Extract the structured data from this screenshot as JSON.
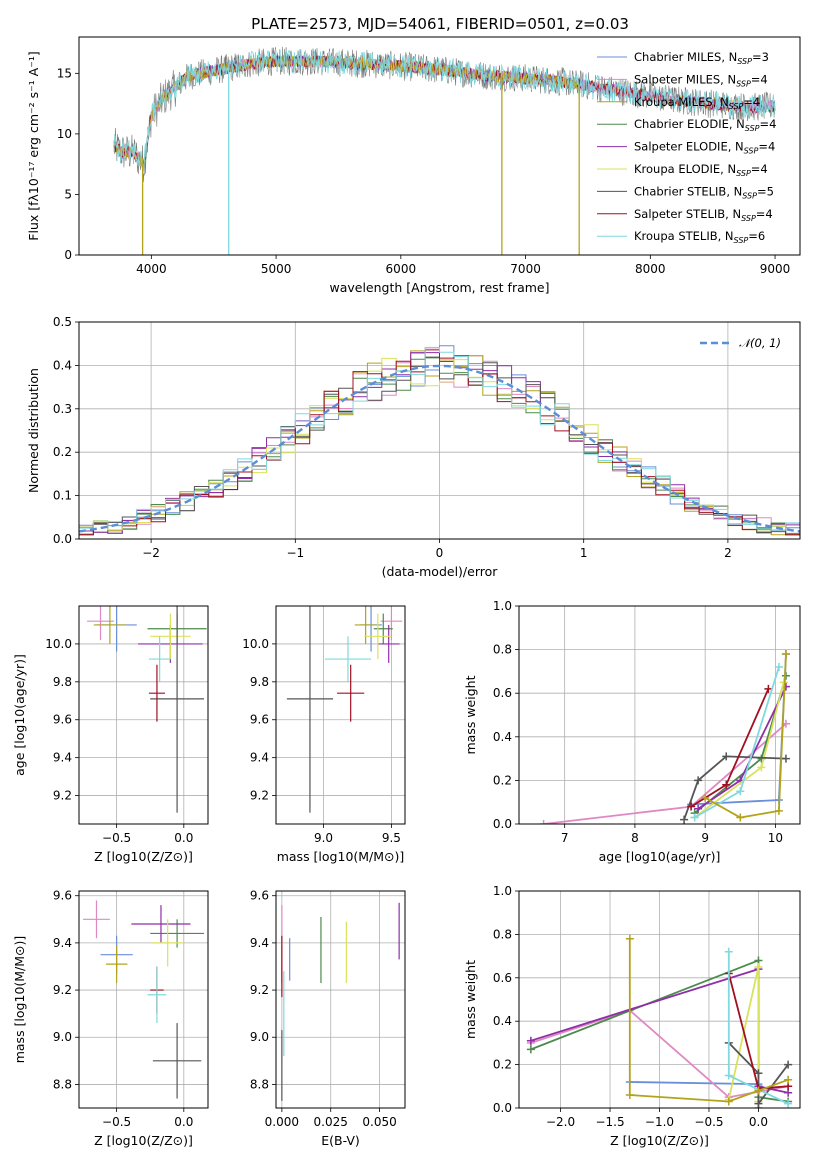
{
  "title": "PLATE=2573, MJD=54061, FIBERID=0501, z=0.03",
  "colors": [
    "#6a8ed9",
    "#e088c4",
    "#b3a31a",
    "#4d8a4d",
    "#8e2fa8",
    "#d9e25c",
    "#555555",
    "#a01020",
    "#7fd9df"
  ],
  "legend": [
    {
      "name": "Chabrier MILES, N",
      "sub": "SSP",
      "tail": "=3"
    },
    {
      "name": "Salpeter MILES, N",
      "sub": "SSP",
      "tail": "=4"
    },
    {
      "name": "Kroupa MILES, N",
      "sub": "SSP",
      "tail": "=4"
    },
    {
      "name": "Chabrier ELODIE, N",
      "sub": "SSP",
      "tail": "=4"
    },
    {
      "name": "Salpeter ELODIE, N",
      "sub": "SSP",
      "tail": "=4"
    },
    {
      "name": "Kroupa ELODIE, N",
      "sub": "SSP",
      "tail": "=4"
    },
    {
      "name": "Chabrier STELIB, N",
      "sub": "SSP",
      "tail": "=5"
    },
    {
      "name": "Salpeter STELIB, N",
      "sub": "SSP",
      "tail": "=4"
    },
    {
      "name": "Kroupa STELIB, N",
      "sub": "SSP",
      "tail": "=6"
    }
  ],
  "chart_data": [
    {
      "id": "spectrum",
      "type": "line",
      "xlabel": "wavelength [Angstrom, rest frame]",
      "ylabel": "Flux [fλ10⁻¹⁷ erg cm⁻² s⁻¹ A⁻¹]",
      "xlim": [
        3420,
        9200
      ],
      "ylim": [
        0,
        18
      ],
      "xticks": [
        4000,
        5000,
        6000,
        7000,
        8000,
        9000
      ],
      "yticks": [
        0,
        5,
        10,
        15
      ],
      "continuum": [
        [
          3700,
          9.0
        ],
        [
          3760,
          8.5
        ],
        [
          3860,
          8.4
        ],
        [
          3940,
          7.5
        ],
        [
          4000,
          11.5
        ],
        [
          4100,
          13.0
        ],
        [
          4300,
          14.8
        ],
        [
          4500,
          15.2
        ],
        [
          4800,
          15.8
        ],
        [
          5000,
          16.0
        ],
        [
          5300,
          16.0
        ],
        [
          5700,
          15.8
        ],
        [
          6000,
          15.6
        ],
        [
          6300,
          15.3
        ],
        [
          6700,
          14.8
        ],
        [
          7000,
          14.6
        ],
        [
          7300,
          14.3
        ],
        [
          7600,
          13.8
        ],
        [
          7900,
          13.3
        ],
        [
          8200,
          12.8
        ],
        [
          8500,
          12.5
        ],
        [
          8800,
          12.2
        ],
        [
          9000,
          12.3
        ]
      ],
      "dips": [
        [
          3930,
          0
        ],
        [
          4620,
          0
        ],
        [
          6810,
          0
        ],
        [
          7430,
          0
        ]
      ]
    },
    {
      "id": "residuals",
      "type": "histogram",
      "xlabel": "(data-model)/error",
      "ylabel": "Normed distribution",
      "xlim": [
        -2.5,
        2.5
      ],
      "ylim": [
        0,
        0.5
      ],
      "xticks": [
        -2,
        -1,
        0,
        1,
        2
      ],
      "yticks": [
        0.0,
        0.1,
        0.2,
        0.3,
        0.4,
        0.5
      ],
      "bin_width": 0.1,
      "legend": "𝒩(0, 1)"
    },
    {
      "id": "age_vs_Z",
      "type": "scatter",
      "xlabel": "Z [log10(Z/Z⊙)]",
      "ylabel": "age  [log10(age/yr)]",
      "xlim": [
        -0.78,
        0.18
      ],
      "ylim": [
        9.05,
        10.2
      ],
      "xticks": [
        -0.5,
        0.0
      ],
      "yticks": [
        9.2,
        9.4,
        9.6,
        9.8,
        10.0
      ],
      "points": [
        {
          "c": 0,
          "x": -0.5,
          "y": 10.1,
          "xe": 0.15,
          "ye": 0.14
        },
        {
          "c": 1,
          "x": -0.62,
          "y": 10.12,
          "xe": 0.1,
          "ye": 0.1
        },
        {
          "c": 2,
          "x": -0.55,
          "y": 10.1,
          "xe": 0.12,
          "ye": 0.1
        },
        {
          "c": 3,
          "x": -0.05,
          "y": 10.08,
          "xe": 0.22,
          "ye": 0.08
        },
        {
          "c": 4,
          "x": -0.1,
          "y": 10.0,
          "xe": 0.24,
          "ye": 0.1
        },
        {
          "c": 5,
          "x": -0.1,
          "y": 10.04,
          "xe": 0.15,
          "ye": 0.12
        },
        {
          "c": 6,
          "x": -0.05,
          "y": 9.71,
          "xe": 0.2,
          "ye": 0.6
        },
        {
          "c": 7,
          "x": -0.2,
          "y": 9.74,
          "xe": 0.06,
          "ye": 0.15
        },
        {
          "c": 8,
          "x": -0.18,
          "y": 9.92,
          "xe": 0.08,
          "ye": 0.12
        }
      ]
    },
    {
      "id": "age_vs_mass",
      "type": "scatter",
      "xlabel": "mass [log10(M/M⊙)]",
      "ylabel": "",
      "xlim": [
        8.65,
        9.6
      ],
      "ylim": [
        9.05,
        10.2
      ],
      "xticks": [
        9.0,
        9.5
      ],
      "yticks": [
        9.2,
        9.4,
        9.6,
        9.8,
        10.0
      ],
      "points": [
        {
          "c": 0,
          "x": 9.35,
          "y": 10.1,
          "xe": 0.08,
          "ye": 0.14
        },
        {
          "c": 1,
          "x": 9.5,
          "y": 10.12,
          "xe": 0.08,
          "ye": 0.1
        },
        {
          "c": 2,
          "x": 9.31,
          "y": 10.1,
          "xe": 0.08,
          "ye": 0.1
        },
        {
          "c": 3,
          "x": 9.44,
          "y": 10.08,
          "xe": 0.07,
          "ye": 0.08
        },
        {
          "c": 4,
          "x": 9.48,
          "y": 10.0,
          "xe": 0.08,
          "ye": 0.1
        },
        {
          "c": 5,
          "x": 9.4,
          "y": 10.04,
          "xe": 0.1,
          "ye": 0.12
        },
        {
          "c": 6,
          "x": 8.9,
          "y": 9.71,
          "xe": 0.17,
          "ye": 0.6
        },
        {
          "c": 7,
          "x": 9.2,
          "y": 9.74,
          "xe": 0.1,
          "ye": 0.15
        },
        {
          "c": 8,
          "x": 9.18,
          "y": 9.92,
          "xe": 0.17,
          "ye": 0.12
        }
      ]
    },
    {
      "id": "weight_vs_age",
      "type": "line",
      "xlabel": "age  [log10(age/yr)]",
      "ylabel": "mass weight",
      "xlim": [
        6.35,
        10.35
      ],
      "ylim": [
        0,
        1
      ],
      "xticks": [
        7,
        8,
        9,
        10
      ],
      "yticks": [
        0.0,
        0.2,
        0.4,
        0.6,
        0.8,
        1.0
      ],
      "series": [
        {
          "c": 0,
          "pts": [
            [
              8.8,
              0.09
            ],
            [
              10.05,
              0.11
            ],
            [
              10.15,
              0.78
            ]
          ]
        },
        {
          "c": 1,
          "pts": [
            [
              6.7,
              0.0
            ],
            [
              8.8,
              0.08
            ],
            [
              10.15,
              0.46
            ]
          ]
        },
        {
          "c": 3,
          "pts": [
            [
              8.85,
              0.05
            ],
            [
              9.8,
              0.3
            ],
            [
              10.15,
              0.68
            ]
          ]
        },
        {
          "c": 4,
          "pts": [
            [
              8.9,
              0.07
            ],
            [
              9.5,
              0.2
            ],
            [
              10.15,
              0.63
            ]
          ]
        },
        {
          "c": 5,
          "pts": [
            [
              8.85,
              0.03
            ],
            [
              9.8,
              0.26
            ],
            [
              10.12,
              0.65
            ]
          ]
        },
        {
          "c": 6,
          "pts": [
            [
              8.7,
              0.02
            ],
            [
              8.9,
              0.2
            ],
            [
              9.3,
              0.31
            ],
            [
              10.15,
              0.3
            ]
          ]
        },
        {
          "c": 7,
          "pts": [
            [
              8.8,
              0.08
            ],
            [
              9.3,
              0.18
            ],
            [
              9.9,
              0.62
            ]
          ]
        },
        {
          "c": 8,
          "pts": [
            [
              8.85,
              0.03
            ],
            [
              9.5,
              0.15
            ],
            [
              10.05,
              0.72
            ]
          ]
        },
        {
          "c": 2,
          "pts": [
            [
              9.0,
              0.12
            ],
            [
              9.5,
              0.03
            ],
            [
              10.05,
              0.06
            ],
            [
              10.15,
              0.78
            ]
          ]
        }
      ]
    },
    {
      "id": "mass_vs_Z",
      "type": "scatter",
      "xlabel": "Z [log10(Z/Z⊙)]",
      "ylabel": "mass [log10(M/M⊙)]",
      "xlim": [
        -0.78,
        0.18
      ],
      "ylim": [
        8.7,
        9.62
      ],
      "xticks": [
        -0.5,
        0.0
      ],
      "yticks": [
        8.8,
        9.0,
        9.2,
        9.4,
        9.6
      ],
      "points": [
        {
          "c": 0,
          "x": -0.5,
          "y": 9.35,
          "xe": 0.12,
          "ye": 0.08
        },
        {
          "c": 1,
          "x": -0.65,
          "y": 9.5,
          "xe": 0.1,
          "ye": 0.08
        },
        {
          "c": 2,
          "x": -0.5,
          "y": 9.31,
          "xe": 0.08,
          "ye": 0.08
        },
        {
          "c": 3,
          "x": -0.05,
          "y": 9.44,
          "xe": 0.2,
          "ye": 0.06
        },
        {
          "c": 4,
          "x": -0.17,
          "y": 9.48,
          "xe": 0.22,
          "ye": 0.08
        },
        {
          "c": 5,
          "x": -0.12,
          "y": 9.4,
          "xe": 0.12,
          "ye": 0.1
        },
        {
          "c": 6,
          "x": -0.05,
          "y": 8.9,
          "xe": 0.18,
          "ye": 0.16
        },
        {
          "c": 7,
          "x": -0.2,
          "y": 9.2,
          "xe": 0.05,
          "ye": 0.1
        },
        {
          "c": 8,
          "x": -0.2,
          "y": 9.18,
          "xe": 0.07,
          "ye": 0.12
        }
      ]
    },
    {
      "id": "mass_vs_EBV",
      "type": "scatter",
      "xlabel": "E(B-V)",
      "ylabel": "",
      "xlim": [
        -0.003,
        0.063
      ],
      "ylim": [
        8.7,
        9.62
      ],
      "xticks": [
        0.0,
        0.025,
        0.05
      ],
      "xtick_labels": [
        "0.000",
        "0.025",
        "0.050"
      ],
      "yticks": [
        8.8,
        9.0,
        9.2,
        9.4,
        9.6
      ],
      "points": [
        {
          "c": 0,
          "x": 0.004,
          "y": 9.33,
          "xe": 0,
          "ye": 0.09
        },
        {
          "c": 1,
          "x": 0.0,
          "y": 9.48,
          "xe": 0,
          "ye": 0.08
        },
        {
          "c": 2,
          "x": 0.0,
          "y": 9.31,
          "xe": 0,
          "ye": 0.08
        },
        {
          "c": 3,
          "x": 0.02,
          "y": 9.37,
          "xe": 0,
          "ye": 0.14
        },
        {
          "c": 4,
          "x": 0.06,
          "y": 9.45,
          "xe": 0,
          "ye": 0.12
        },
        {
          "c": 5,
          "x": 0.033,
          "y": 9.36,
          "xe": 0,
          "ye": 0.13
        },
        {
          "c": 6,
          "x": 0.0,
          "y": 8.88,
          "xe": 0,
          "ye": 0.15
        },
        {
          "c": 7,
          "x": 0.0,
          "y": 9.3,
          "xe": 0,
          "ye": 0.13
        },
        {
          "c": 8,
          "x": 0.001,
          "y": 9.1,
          "xe": 0,
          "ye": 0.18
        }
      ]
    },
    {
      "id": "weight_vs_Z",
      "type": "line",
      "xlabel": "Z [log10(Z/Z⊙)]",
      "ylabel": "mass weight",
      "xlim": [
        -2.42,
        0.42
      ],
      "ylim": [
        0,
        1
      ],
      "xticks": [
        -2.0,
        -1.5,
        -1.0,
        -0.5,
        0.0
      ],
      "yticks": [
        0.0,
        0.2,
        0.4,
        0.6,
        0.8,
        1.0
      ],
      "series": [
        {
          "c": 0,
          "pts": [
            [
              -1.3,
              0.12
            ],
            [
              0.0,
              0.11
            ],
            [
              0.0,
              0.0
            ]
          ]
        },
        {
          "c": 1,
          "pts": [
            [
              -2.3,
              0.3
            ],
            [
              -1.3,
              0.45
            ],
            [
              -0.3,
              0.05
            ],
            [
              0.3,
              0.1
            ]
          ]
        },
        {
          "c": 3,
          "pts": [
            [
              -2.3,
              0.27
            ],
            [
              0.0,
              0.68
            ],
            [
              0.0,
              0.05
            ],
            [
              0.3,
              0.03
            ]
          ]
        },
        {
          "c": 4,
          "pts": [
            [
              -2.3,
              0.31
            ],
            [
              0.0,
              0.64
            ],
            [
              0.0,
              0.1
            ],
            [
              0.3,
              0.07
            ]
          ]
        },
        {
          "c": 5,
          "pts": [
            [
              -0.3,
              0.04
            ],
            [
              0.0,
              0.65
            ],
            [
              0.0,
              0.03
            ]
          ]
        },
        {
          "c": 6,
          "pts": [
            [
              -0.3,
              0.3
            ],
            [
              0.0,
              0.16
            ],
            [
              0.0,
              0.02
            ],
            [
              0.3,
              0.2
            ]
          ]
        },
        {
          "c": 7,
          "pts": [
            [
              -0.3,
              0.62
            ],
            [
              0.0,
              0.09
            ],
            [
              0.3,
              0.1
            ]
          ]
        },
        {
          "c": 8,
          "pts": [
            [
              -0.3,
              0.72
            ],
            [
              -0.3,
              0.15
            ],
            [
              0.3,
              0.02
            ]
          ]
        },
        {
          "c": 2,
          "pts": [
            [
              -1.3,
              0.78
            ],
            [
              -1.3,
              0.06
            ],
            [
              -0.3,
              0.03
            ],
            [
              0.0,
              0.08
            ],
            [
              0.3,
              0.13
            ]
          ]
        }
      ]
    }
  ]
}
